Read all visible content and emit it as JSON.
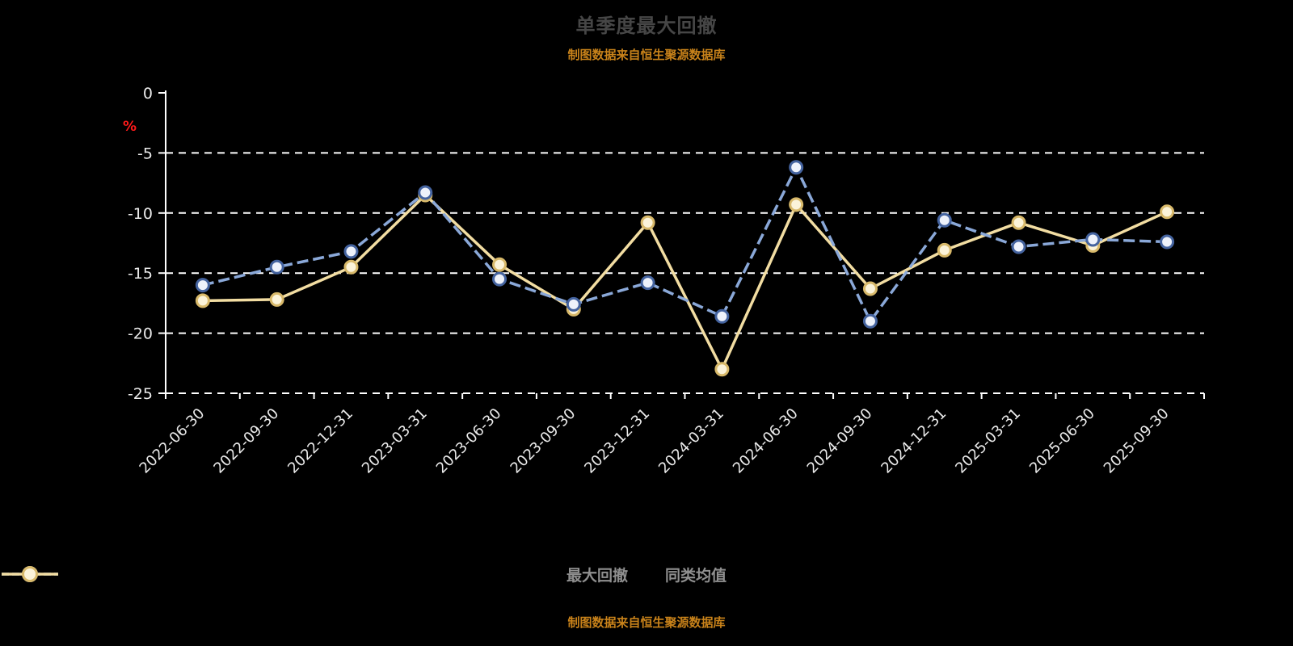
{
  "chart_data": {
    "type": "line",
    "title": "单季度最大回撤",
    "ylabel": "%",
    "ylim": [
      -25,
      0
    ],
    "yticks": [
      0,
      -5,
      -10,
      -15,
      -20,
      -25
    ],
    "grid": "horizontal-dashed",
    "legend_position": "bottom",
    "categories": [
      "2022-06-30",
      "2022-09-30",
      "2022-12-31",
      "2023-03-31",
      "2023-06-30",
      "2023-09-30",
      "2023-12-31",
      "2024-03-31",
      "2024-06-30",
      "2024-09-30",
      "2024-12-31",
      "2025-03-31",
      "2025-06-30",
      "2025-09-30"
    ],
    "series": [
      {
        "name": "最大回撤",
        "color": "#8aa8d8",
        "marker_fill": "#eef2fb",
        "marker_stroke": "#44639f",
        "dashed": true,
        "values": [
          -16.0,
          -14.5,
          -13.2,
          -8.3,
          -15.5,
          -17.6,
          -15.8,
          -18.6,
          -6.2,
          -19.0,
          -10.6,
          -12.8,
          -12.2,
          -12.4
        ]
      },
      {
        "name": "同类均值",
        "color": "#f2dda2",
        "marker_fill": "#fbf3d9",
        "marker_stroke": "#d8b96a",
        "dashed": false,
        "values": [
          -17.3,
          -17.2,
          -14.5,
          -8.5,
          -14.3,
          -18.0,
          -10.8,
          -23.0,
          -9.3,
          -16.3,
          -13.1,
          -10.8,
          -12.7,
          -9.9
        ]
      }
    ]
  },
  "texts": {
    "source_note": "制图数据来自恒生聚源数据库"
  },
  "colors": {
    "background": "#000000",
    "title": "#464646",
    "source_note": "#c8821a",
    "axis": "#ffffff",
    "gridline": "#ffffff",
    "tick_label": "#ebebeb",
    "ylabel": "#ff1a1a",
    "legend_text": "#8f8f8f"
  }
}
